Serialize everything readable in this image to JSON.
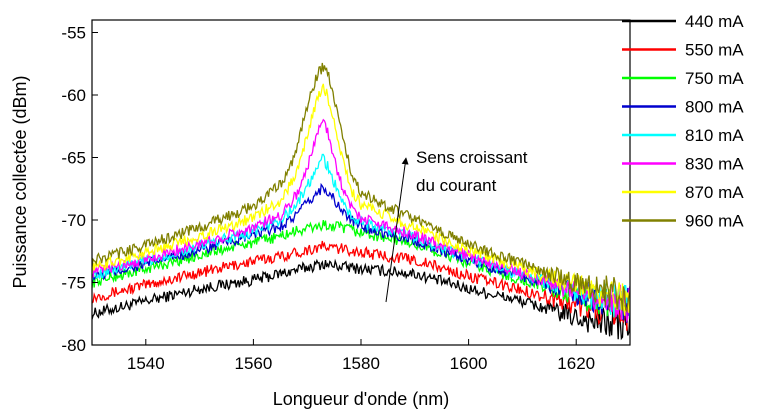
{
  "chart_data": {
    "type": "line",
    "xlabel": "Longueur d'onde (nm)",
    "ylabel": "Puissance collectée (dBm)",
    "xlim": [
      1530,
      1630
    ],
    "ylim": [
      -80,
      -54
    ],
    "x_ticks": [
      1540,
      1560,
      1580,
      1600,
      1620
    ],
    "y_ticks": [
      -80,
      -75,
      -70,
      -65,
      -60,
      -55
    ],
    "x_tick_labels": [
      "1540",
      "1560",
      "1580",
      "1600",
      "1620"
    ],
    "y_tick_labels": [
      "-80",
      "-75",
      "-70",
      "-65",
      "-60",
      "-55"
    ],
    "legend_position": "right",
    "grid": false,
    "x": [
      1530,
      1540,
      1550,
      1560,
      1565,
      1568,
      1570,
      1572,
      1573,
      1574,
      1576,
      1578,
      1580,
      1590,
      1600,
      1610,
      1620,
      1625,
      1630
    ],
    "series": [
      {
        "name": "440 mA",
        "color": "#000000",
        "values": [
          -77.5,
          -76.5,
          -75.5,
          -74.8,
          -74.3,
          -74.0,
          -73.8,
          -73.6,
          -73.5,
          -73.6,
          -73.7,
          -73.8,
          -73.9,
          -74.3,
          -75.5,
          -76.5,
          -77.8,
          -78.2,
          -78.5
        ]
      },
      {
        "name": "550 mA",
        "color": "#ff0000",
        "values": [
          -76.2,
          -75.2,
          -74.2,
          -73.3,
          -72.9,
          -72.6,
          -72.4,
          -72.2,
          -72.1,
          -72.2,
          -72.3,
          -72.4,
          -72.6,
          -73.2,
          -74.5,
          -75.6,
          -76.8,
          -77.2,
          -77.5
        ]
      },
      {
        "name": "750 mA",
        "color": "#00ff00",
        "values": [
          -75.0,
          -73.9,
          -72.8,
          -71.8,
          -71.3,
          -70.9,
          -70.7,
          -70.5,
          -70.4,
          -70.5,
          -70.6,
          -70.8,
          -71.0,
          -71.9,
          -73.5,
          -74.8,
          -76.1,
          -76.6,
          -77.0
        ]
      },
      {
        "name": "800 mA",
        "color": "#0000cd",
        "values": [
          -74.6,
          -73.5,
          -72.4,
          -71.2,
          -70.5,
          -69.6,
          -68.7,
          -67.8,
          -67.3,
          -67.8,
          -69.0,
          -70.0,
          -70.5,
          -71.6,
          -73.2,
          -74.5,
          -75.9,
          -76.4,
          -76.9
        ]
      },
      {
        "name": "810 mA",
        "color": "#00ffff",
        "values": [
          -74.4,
          -73.3,
          -72.1,
          -70.9,
          -70.0,
          -68.8,
          -67.3,
          -65.8,
          -65.0,
          -65.9,
          -68.1,
          -69.6,
          -70.2,
          -71.4,
          -73.0,
          -74.4,
          -75.8,
          -76.3,
          -76.8
        ]
      },
      {
        "name": "830 mA",
        "color": "#ff00ff",
        "values": [
          -74.2,
          -73.1,
          -71.9,
          -70.6,
          -69.6,
          -68.0,
          -65.8,
          -63.0,
          -61.7,
          -63.2,
          -66.7,
          -68.9,
          -69.8,
          -71.2,
          -72.9,
          -74.3,
          -75.7,
          -76.2,
          -76.7
        ]
      },
      {
        "name": "870 mA",
        "color": "#ffff00",
        "values": [
          -73.8,
          -72.6,
          -71.3,
          -69.8,
          -68.5,
          -66.3,
          -63.2,
          -60.2,
          -59.2,
          -60.4,
          -64.2,
          -67.5,
          -68.8,
          -70.6,
          -72.4,
          -73.9,
          -75.3,
          -75.9,
          -76.4
        ]
      },
      {
        "name": "960 mA",
        "color": "#808000",
        "values": [
          -73.3,
          -72.0,
          -70.6,
          -68.9,
          -67.2,
          -64.6,
          -60.8,
          -58.2,
          -57.7,
          -58.6,
          -62.1,
          -66.0,
          -67.8,
          -70.0,
          -71.9,
          -73.5,
          -75.0,
          -75.6,
          -76.0
        ]
      }
    ],
    "annotation": {
      "line1": "Sens croissant",
      "line2": "du courant"
    }
  }
}
